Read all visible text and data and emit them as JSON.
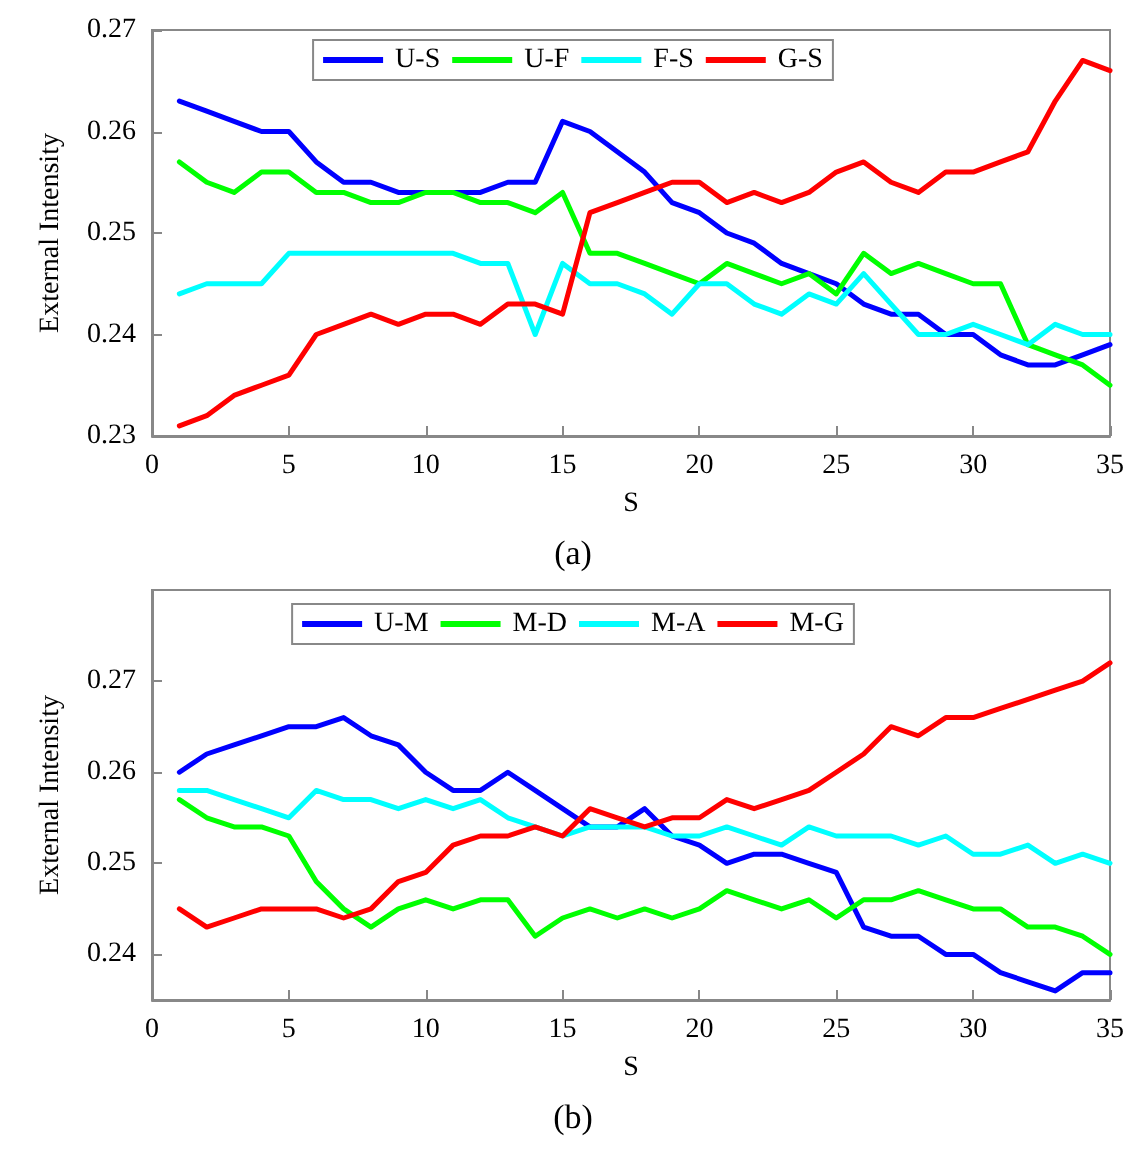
{
  "chart_data": [
    {
      "type": "line",
      "title": "(a)",
      "xlabel": "S",
      "ylabel": "External Intensity",
      "x": [
        1,
        2,
        3,
        4,
        5,
        6,
        7,
        8,
        9,
        10,
        11,
        12,
        13,
        14,
        15,
        16,
        17,
        18,
        19,
        20,
        21,
        22,
        23,
        24,
        25,
        26,
        27,
        28,
        29,
        30,
        31,
        32,
        33,
        34,
        35
      ],
      "xlim": [
        0,
        35
      ],
      "xticks": [
        0,
        5,
        10,
        15,
        20,
        25,
        30,
        35
      ],
      "ylim": [
        0.23,
        0.27
      ],
      "yticks": [
        0.23,
        0.24,
        0.25,
        0.26,
        0.27
      ],
      "legend": "top",
      "grid": false,
      "marker": "none",
      "line_style": "solid",
      "series": [
        {
          "name": "U-S",
          "color": "#0000ff",
          "values": [
            0.263,
            0.262,
            0.261,
            0.26,
            0.26,
            0.257,
            0.255,
            0.255,
            0.254,
            0.254,
            0.254,
            0.254,
            0.255,
            0.255,
            0.261,
            0.26,
            0.258,
            0.256,
            0.253,
            0.252,
            0.25,
            0.249,
            0.247,
            0.246,
            0.245,
            0.243,
            0.242,
            0.242,
            0.24,
            0.24,
            0.238,
            0.237,
            0.237,
            0.238,
            0.239
          ]
        },
        {
          "name": "U-F",
          "color": "#00ff00",
          "values": [
            0.257,
            0.255,
            0.254,
            0.256,
            0.256,
            0.254,
            0.254,
            0.253,
            0.253,
            0.254,
            0.254,
            0.253,
            0.253,
            0.252,
            0.254,
            0.248,
            0.248,
            0.247,
            0.246,
            0.245,
            0.247,
            0.246,
            0.245,
            0.246,
            0.244,
            0.248,
            0.246,
            0.247,
            0.246,
            0.245,
            0.245,
            0.239,
            0.238,
            0.237,
            0.235
          ]
        },
        {
          "name": "F-S",
          "color": "#00ffff",
          "values": [
            0.244,
            0.245,
            0.245,
            0.245,
            0.248,
            0.248,
            0.248,
            0.248,
            0.248,
            0.248,
            0.248,
            0.247,
            0.247,
            0.24,
            0.247,
            0.245,
            0.245,
            0.244,
            0.242,
            0.245,
            0.245,
            0.243,
            0.242,
            0.244,
            0.243,
            0.246,
            0.243,
            0.24,
            0.24,
            0.241,
            0.24,
            0.239,
            0.241,
            0.24,
            0.24
          ]
        },
        {
          "name": "G-S",
          "color": "#ff0000",
          "values": [
            0.231,
            0.232,
            0.234,
            0.235,
            0.236,
            0.24,
            0.241,
            0.242,
            0.241,
            0.242,
            0.242,
            0.241,
            0.243,
            0.243,
            0.242,
            0.252,
            0.253,
            0.254,
            0.255,
            0.255,
            0.253,
            0.254,
            0.253,
            0.254,
            0.256,
            0.257,
            0.255,
            0.254,
            0.256,
            0.256,
            0.257,
            0.258,
            0.263,
            0.267,
            0.266
          ]
        }
      ]
    },
    {
      "type": "line",
      "title": "(b)",
      "xlabel": "S",
      "ylabel": "External Intensity",
      "x": [
        1,
        2,
        3,
        4,
        5,
        6,
        7,
        8,
        9,
        10,
        11,
        12,
        13,
        14,
        15,
        16,
        17,
        18,
        19,
        20,
        21,
        22,
        23,
        24,
        25,
        26,
        27,
        28,
        29,
        30,
        31,
        32,
        33,
        34,
        35
      ],
      "xlim": [
        0,
        35
      ],
      "xticks": [
        0,
        5,
        10,
        15,
        20,
        25,
        30,
        35
      ],
      "ylim": [
        0.235,
        0.28
      ],
      "yticks": [
        0.24,
        0.25,
        0.26,
        0.27
      ],
      "legend": "top",
      "grid": false,
      "marker": "none",
      "line_style": "solid",
      "series": [
        {
          "name": "U-M",
          "color": "#0000ff",
          "values": [
            0.26,
            0.262,
            0.263,
            0.264,
            0.265,
            0.265,
            0.266,
            0.264,
            0.263,
            0.26,
            0.258,
            0.258,
            0.26,
            0.258,
            0.256,
            0.254,
            0.254,
            0.256,
            0.253,
            0.252,
            0.25,
            0.251,
            0.251,
            0.25,
            0.249,
            0.243,
            0.242,
            0.242,
            0.24,
            0.24,
            0.238,
            0.237,
            0.236,
            0.238,
            0.238
          ]
        },
        {
          "name": "M-D",
          "color": "#00ff00",
          "values": [
            0.257,
            0.255,
            0.254,
            0.254,
            0.253,
            0.248,
            0.245,
            0.243,
            0.245,
            0.246,
            0.245,
            0.246,
            0.246,
            0.242,
            0.244,
            0.245,
            0.244,
            0.245,
            0.244,
            0.245,
            0.247,
            0.246,
            0.245,
            0.246,
            0.244,
            0.246,
            0.246,
            0.247,
            0.246,
            0.245,
            0.245,
            0.243,
            0.243,
            0.242,
            0.24
          ]
        },
        {
          "name": "M-A",
          "color": "#00ffff",
          "values": [
            0.258,
            0.258,
            0.257,
            0.256,
            0.255,
            0.258,
            0.257,
            0.257,
            0.256,
            0.257,
            0.256,
            0.257,
            0.255,
            0.254,
            0.253,
            0.254,
            0.254,
            0.254,
            0.253,
            0.253,
            0.254,
            0.253,
            0.252,
            0.254,
            0.253,
            0.253,
            0.253,
            0.252,
            0.253,
            0.251,
            0.251,
            0.252,
            0.25,
            0.251,
            0.25
          ]
        },
        {
          "name": "M-G",
          "color": "#ff0000",
          "values": [
            0.245,
            0.243,
            0.244,
            0.245,
            0.245,
            0.245,
            0.244,
            0.245,
            0.248,
            0.249,
            0.252,
            0.253,
            0.253,
            0.254,
            0.253,
            0.256,
            0.255,
            0.254,
            0.255,
            0.255,
            0.257,
            0.256,
            0.257,
            0.258,
            0.26,
            0.262,
            0.265,
            0.264,
            0.266,
            0.266,
            0.267,
            0.268,
            0.269,
            0.27,
            0.272
          ]
        }
      ]
    }
  ]
}
